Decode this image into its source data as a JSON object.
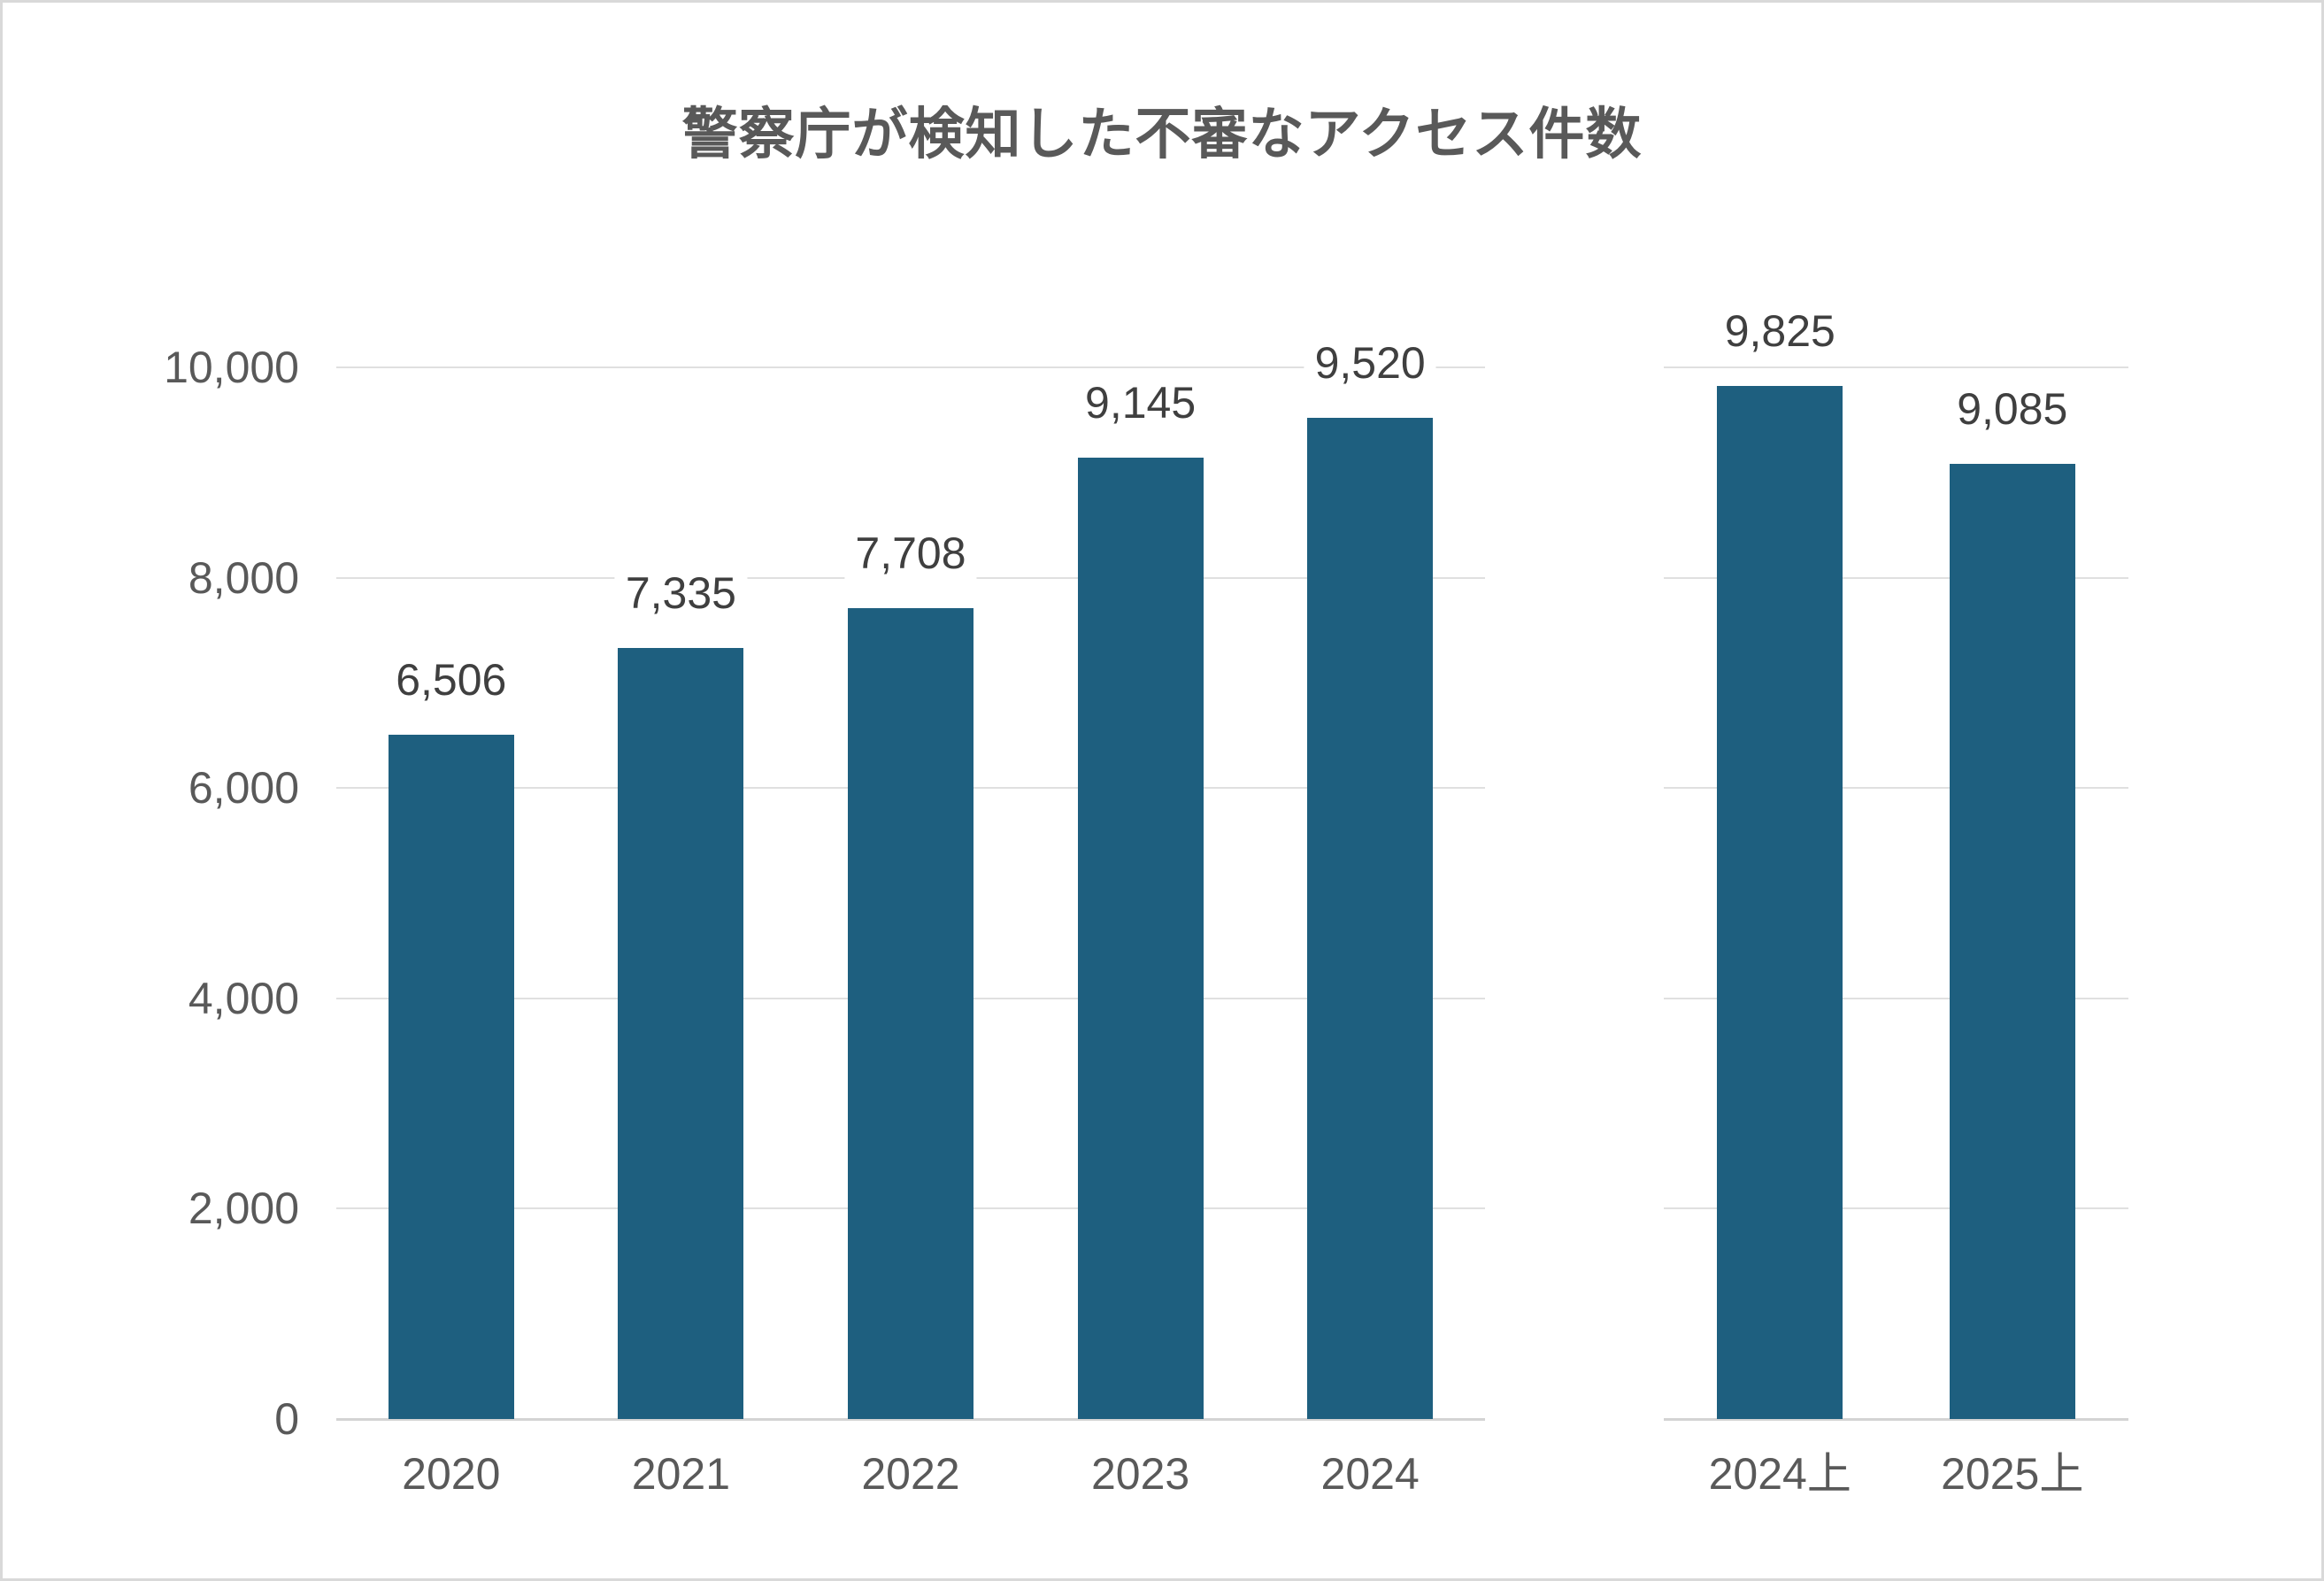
{
  "colors": {
    "bar": "#1e5f7f",
    "gridline": "#e0e0e0",
    "axis_line": "#d4d4d4",
    "title_text": "#595959",
    "axis_text": "#595959",
    "value_label_text": "#3f3f3f",
    "canvas_border": "#d9d9d9",
    "background": "#ffffff"
  },
  "chart_data": {
    "type": "bar",
    "title": "警察庁が検知した不審なアクセス件数",
    "xlabel": "",
    "ylabel": "",
    "ylim": [
      0,
      10000
    ],
    "y_tick_interval": 2000,
    "y_tick_labels": [
      "10,000",
      "8,000",
      "6,000",
      "4,000",
      "2,000",
      "0"
    ],
    "grid": "horizontal",
    "legend": "none",
    "groups": [
      {
        "name": "annual",
        "categories": [
          "2020",
          "2021",
          "2022",
          "2023",
          "2024"
        ],
        "values": [
          6506,
          7335,
          7708,
          9145,
          9520
        ],
        "value_labels": [
          "6,506",
          "7,335",
          "7,708",
          "9,145",
          "9,520"
        ]
      },
      {
        "name": "first-half",
        "categories": [
          "2024上",
          "2025上"
        ],
        "values": [
          9825,
          9085
        ],
        "value_labels": [
          "9,825",
          "9,085"
        ]
      }
    ]
  }
}
